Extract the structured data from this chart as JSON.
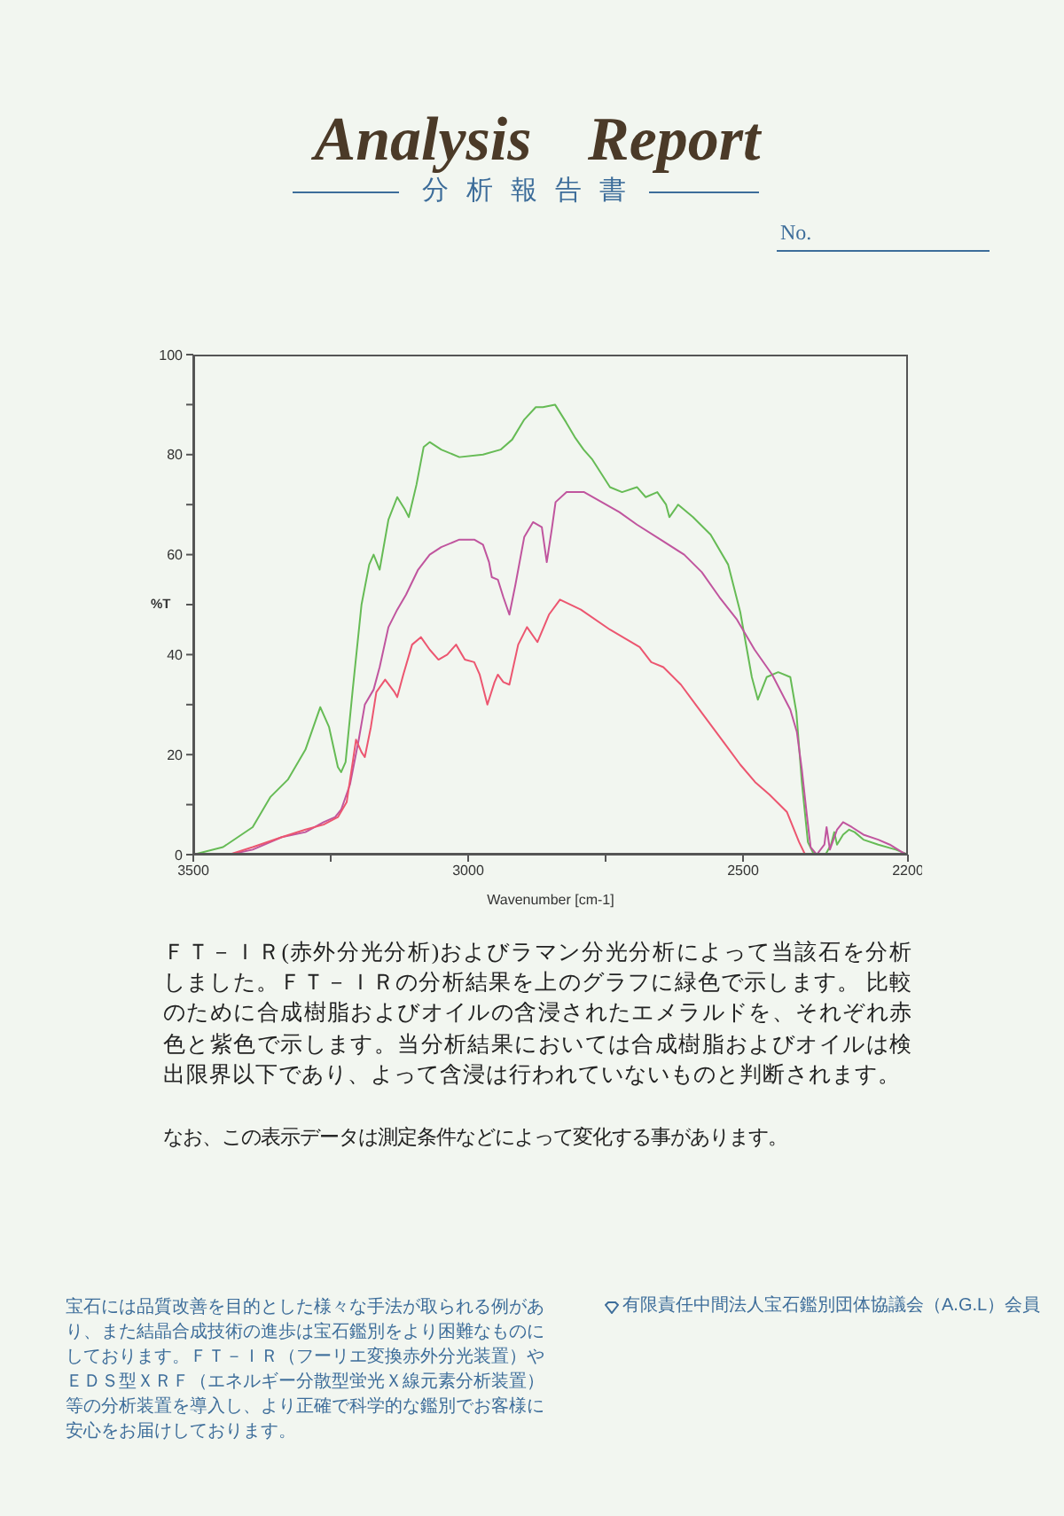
{
  "chart_data": {
    "type": "line",
    "title": "Analysis Report",
    "subtitle": "分析報告書",
    "xlabel": "Wavenumber [cm-1]",
    "ylabel": "%T",
    "xlim": [
      3500,
      2200
    ],
    "xticks": [
      3500,
      {
        "value": 3250,
        "label": null
      },
      3000,
      {
        "value": 2750,
        "label": null
      },
      2500,
      2200
    ],
    "ylim": [
      0,
      100
    ],
    "yticks": [
      0,
      {
        "value": 10,
        "label": null
      },
      20,
      {
        "value": 30,
        "label": null
      },
      40,
      {
        "value": 50,
        "label": null
      },
      60,
      {
        "value": 70,
        "label": null
      },
      80,
      {
        "value": 90,
        "label": null
      },
      100
    ],
    "line_style": "solid",
    "series": [
      {
        "color": "#66bb55",
        "x": [
          3500,
          3446,
          3392,
          3360,
          3328,
          3296,
          3269,
          3253,
          3237,
          3231,
          3223,
          3210,
          3194,
          3180,
          3172,
          3161,
          3145,
          3129,
          3115,
          3108,
          3094,
          3081,
          3070,
          3049,
          3016,
          2973,
          2941,
          2920,
          2898,
          2877,
          2864,
          2842,
          2822,
          2806,
          2790,
          2774,
          2742,
          2720,
          2693,
          2677,
          2656,
          2640,
          2634,
          2618,
          2591,
          2559,
          2527,
          2505,
          2484,
          2473,
          2457,
          2436,
          2414,
          2403,
          2393,
          2382,
          2371,
          2361,
          2350,
          2340,
          2334,
          2329,
          2318,
          2307,
          2297,
          2281,
          2254,
          2222,
          2200
        ],
        "values": [
          0,
          1.5,
          5.5,
          11.5,
          15,
          21,
          29.5,
          25.5,
          17.5,
          16.5,
          18.5,
          33,
          50,
          58,
          60,
          57,
          67,
          71.5,
          69,
          67.5,
          74,
          81.5,
          82.5,
          81,
          79.5,
          80,
          81,
          83,
          87,
          89.5,
          89.5,
          90,
          86.5,
          83.5,
          81,
          79,
          73.5,
          72.5,
          73.5,
          71.5,
          72.5,
          70,
          67.5,
          70,
          67.5,
          64,
          58,
          48.5,
          35.5,
          31,
          35.5,
          36.5,
          35.5,
          28.5,
          14.5,
          2.5,
          0,
          0,
          0,
          2,
          4.5,
          2,
          4,
          5,
          4.5,
          3,
          2,
          1,
          0
        ]
      },
      {
        "color": "#c0559e",
        "x": [
          3500,
          3435,
          3392,
          3339,
          3296,
          3263,
          3242,
          3231,
          3215,
          3199,
          3188,
          3172,
          3161,
          3145,
          3129,
          3113,
          3091,
          3070,
          3049,
          3016,
          2989,
          2973,
          2962,
          2957,
          2946,
          2936,
          2925,
          2914,
          2898,
          2882,
          2866,
          2857,
          2848,
          2841,
          2821,
          2789,
          2757,
          2725,
          2693,
          2650,
          2607,
          2575,
          2543,
          2511,
          2479,
          2447,
          2414,
          2402,
          2393,
          2384,
          2377,
          2366,
          2352,
          2348,
          2342,
          2329,
          2318,
          2302,
          2281,
          2254,
          2233,
          2211,
          2200
        ],
        "values": [
          0,
          0,
          1,
          3.5,
          4.5,
          6.5,
          7.5,
          9,
          14,
          23,
          30,
          33,
          37.5,
          45.5,
          49,
          52,
          57,
          60,
          61.5,
          63,
          63,
          62,
          58.5,
          55.5,
          55,
          51.5,
          48,
          54,
          63.5,
          66.5,
          65.5,
          58.5,
          65,
          70.5,
          72.5,
          72.5,
          70.5,
          68.5,
          66,
          63,
          60,
          56.5,
          51.5,
          47,
          41,
          36,
          29,
          24.5,
          17,
          8,
          1.5,
          0,
          2,
          5.5,
          1,
          5,
          6.5,
          5.5,
          4,
          3,
          2,
          0.5,
          0
        ]
      },
      {
        "color": "#ec5670",
        "x": [
          3500,
          3435,
          3392,
          3339,
          3296,
          3263,
          3237,
          3221,
          3210,
          3204,
          3194,
          3188,
          3177,
          3167,
          3151,
          3134,
          3129,
          3118,
          3102,
          3086,
          3070,
          3054,
          3038,
          3022,
          3006,
          2989,
          2979,
          2965,
          2952,
          2946,
          2936,
          2925,
          2909,
          2893,
          2874,
          2853,
          2833,
          2795,
          2742,
          2688,
          2667,
          2645,
          2613,
          2586,
          2559,
          2532,
          2505,
          2478,
          2452,
          2420,
          2398,
          2387,
          2200
        ],
        "values": [
          0,
          0,
          1.5,
          3.5,
          5,
          6,
          7.5,
          10.5,
          18.5,
          23,
          20.5,
          19.5,
          25.5,
          32.5,
          35,
          32.5,
          31.5,
          36,
          42,
          43.5,
          41,
          39,
          40,
          42,
          39,
          38.5,
          36,
          30,
          34.5,
          36,
          34.5,
          34,
          42,
          45.5,
          42.5,
          48,
          51,
          49,
          45,
          41.5,
          38.5,
          37.5,
          34,
          30,
          26,
          22,
          18,
          14.5,
          12,
          8.5,
          2.5,
          0,
          0
        ]
      }
    ],
    "annotations": [
      "No.",
      "ＦＴ－ＩＲ(赤外分光分析)およびラマン分光分析によって当該石を分析しました。ＦＴ－ＩＲの分析結果を上のグラフに緑色で示します。 比較のために合成樹脂およびオイルの含浸されたエメラルドを、それぞれ赤色と紫色で示します。当分析結果においては合成樹脂およびオイルは検出限界以下であり、よって含浸は行われていないものと判断されます。",
      "なお、この表示データは測定条件などによって変化する事があります。",
      "宝石には品質改善を目的とした様々な手法が取られる例があり、また結晶合成技術の進歩は宝石鑑別をより困難なものにしております。ＦＴ－ＩＲ（フーリエ変換赤外分光装置）やＥＤＳ型ＸＲＦ（エネルギー分散型蛍光Ｘ線元素分析装置）等の分析装置を導入し、より正確で科学的な鑑別でお客様に安心をお届けしております。",
      "有限責任中間法人宝石鑑別団体協議会（A.G.L）会員"
    ]
  }
}
